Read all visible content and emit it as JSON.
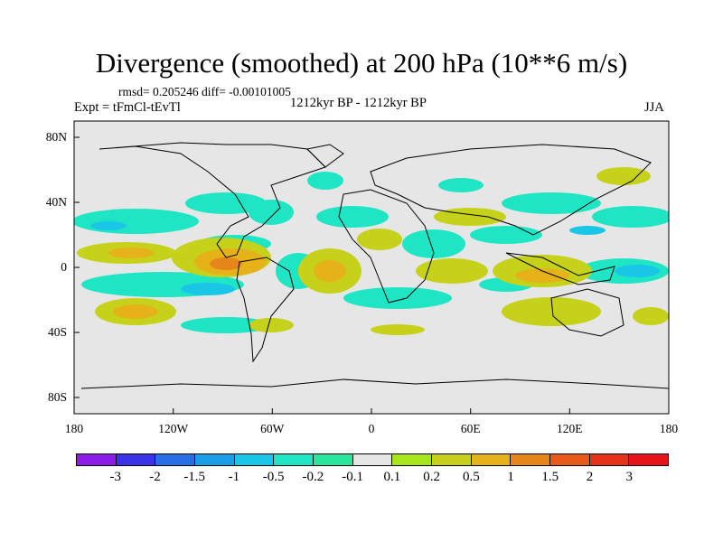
{
  "title": "Divergence (smoothed) at 200 hPa (10**6 m/s)",
  "stats": "rmsd= 0.205246 diff= -0.00101005",
  "expt": "Expt = tFmCl-tEvTl",
  "period": "1212kyr BP - 1212kyr BP",
  "season": "JJA",
  "lat_labels": [
    "80N",
    "40N",
    "0",
    "40S",
    "80S"
  ],
  "lon_labels": [
    "180",
    "120W",
    "60W",
    "0",
    "60E",
    "120E",
    "180"
  ],
  "colorbar": {
    "labels": [
      "-3",
      "-2",
      "-1.5",
      "-1",
      "-0.5",
      "-0.2",
      "-0.1",
      "0.1",
      "0.2",
      "0.5",
      "1",
      "1.5",
      "2",
      "3"
    ],
    "colors": [
      "#8a1ee6",
      "#3c32e6",
      "#2a6ee6",
      "#1a9ee6",
      "#1ac6e6",
      "#1ee6c4",
      "#2ae69a",
      "#e6e6e6",
      "#a6e61a",
      "#c6d21a",
      "#e6b21a",
      "#e6861a",
      "#e65a1a",
      "#e6321a",
      "#e6141a"
    ]
  },
  "map_colors": {
    "background": "#e6e6e6",
    "coast": "#000000"
  }
}
